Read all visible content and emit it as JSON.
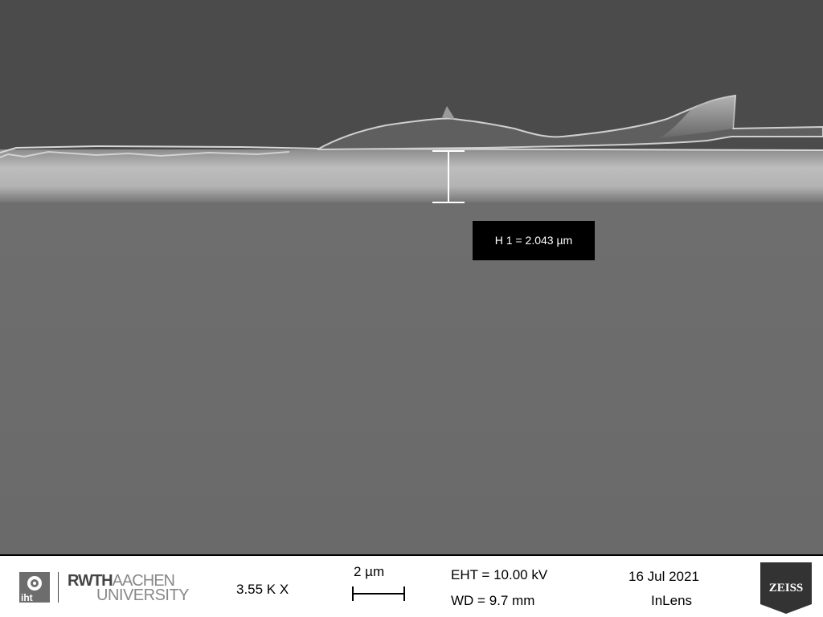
{
  "measurement": {
    "label": "H 1 = 2.043 µm"
  },
  "info_bar": {
    "logo_iht_text": "iht",
    "logo_rwth": "RWTH",
    "logo_aachen": "AACHEN",
    "logo_university": "UNIVERSITY",
    "magnification": "3.55 K X",
    "scale_label": "2 µm",
    "eht": "EHT = 10.00 kV",
    "wd": "WD =  9.7 mm",
    "date": "16 Jul 2021",
    "detector": "InLens",
    "brand": "ZEISS"
  },
  "colors": {
    "background": "#4a4a4a",
    "substrate": "#6c6c6c",
    "film": "#b0b0b0",
    "infobar": "#ffffff"
  }
}
